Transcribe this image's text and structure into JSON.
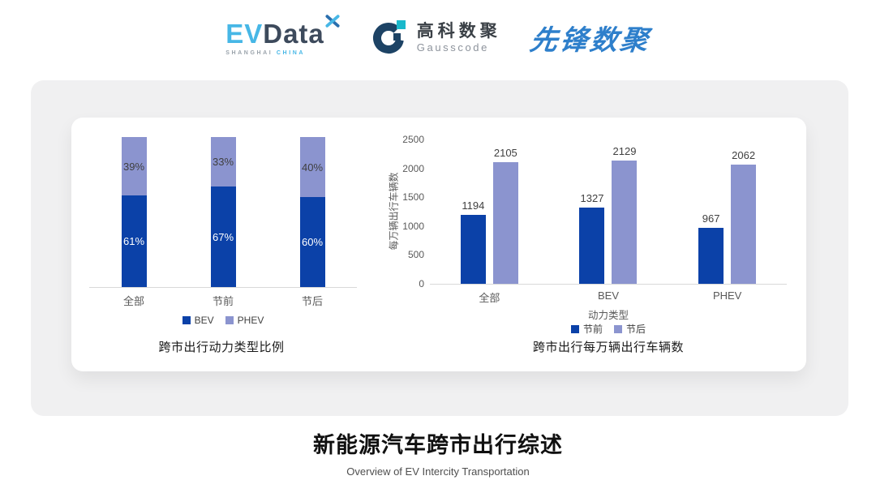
{
  "header": {
    "logos": {
      "evdata": {
        "ev": "EV",
        "data": "Data",
        "sub_left": "SHANGHAI",
        "sub_right": "CHINA"
      },
      "gausscode": {
        "cn": "高科数聚",
        "en": "Gausscode"
      },
      "xianfeng": {
        "text": "先锋数聚"
      }
    }
  },
  "colors": {
    "bev_dark_blue": "#0b41a8",
    "phev_light_purple": "#8b94cf",
    "card_background": "#f0f0f1",
    "axis_gray": "#595959",
    "brand_light_blue": "#47b7e6",
    "brand_navy": "#1d4365",
    "brand_teal": "#19b8cb",
    "xianfeng_blue": "#2e7fcb"
  },
  "chart_data": [
    {
      "type": "bar",
      "variant": "stacked-percent",
      "title": "跨市出行动力类型比例",
      "categories": [
        "全部",
        "节前",
        "节后"
      ],
      "series": [
        {
          "name": "BEV",
          "values": [
            61,
            67,
            60
          ],
          "color": "#0b41a8",
          "label_color": "#ffffff"
        },
        {
          "name": "PHEV",
          "values": [
            39,
            33,
            40
          ],
          "color": "#8b94cf",
          "label_color": "#3f3f3f"
        }
      ],
      "value_suffix": "%",
      "ylim": [
        0,
        100
      ],
      "grid": false,
      "legend_position": "bottom"
    },
    {
      "type": "bar",
      "variant": "grouped",
      "title": "跨市出行每万辆出行车辆数",
      "xlabel": "动力类型",
      "ylabel": "每万辆出行车辆数",
      "categories": [
        "全部",
        "BEV",
        "PHEV"
      ],
      "series": [
        {
          "name": "节前",
          "values": [
            1194,
            1327,
            967
          ],
          "color": "#0b41a8"
        },
        {
          "name": "节后",
          "values": [
            2105,
            2129,
            2062
          ],
          "color": "#8b94cf"
        }
      ],
      "ylim": [
        0,
        2500
      ],
      "yticks": [
        0,
        500,
        1000,
        1500,
        2000,
        2500
      ],
      "grid": false,
      "legend_position": "bottom"
    }
  ],
  "footer": {
    "title": "新能源汽车跨市出行综述",
    "subtitle": "Overview of EV Intercity Transportation"
  }
}
